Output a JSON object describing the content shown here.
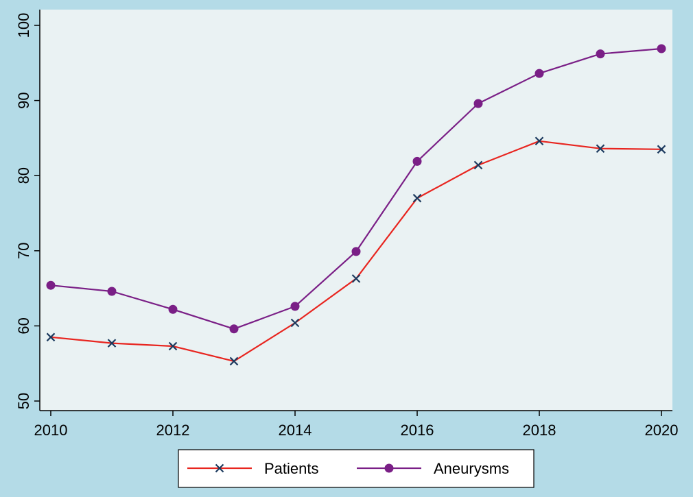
{
  "colors": {
    "background": "#b4dbe7",
    "plot_area": "#eaf2f3",
    "patients": "#e8251f",
    "patients_marker": "#1c3a5e",
    "aneurysms": "#7a1f86"
  },
  "chart_data": {
    "type": "line",
    "title": "",
    "xlabel": "",
    "ylabel": "",
    "x": [
      2010,
      2011,
      2012,
      2013,
      2014,
      2015,
      2016,
      2017,
      2018,
      2019,
      2020
    ],
    "xlim": [
      2010,
      2020
    ],
    "ylim": [
      50,
      100
    ],
    "x_ticks": [
      "2010",
      "2012",
      "2014",
      "2016",
      "2018",
      "2020"
    ],
    "y_ticks": [
      "50",
      "60",
      "70",
      "80",
      "90",
      "100"
    ],
    "grid": false,
    "legend_position": "bottom",
    "series": [
      {
        "name": "Patients",
        "marker": "x-cross",
        "values": [
          58.5,
          57.7,
          57.3,
          55.3,
          60.4,
          66.3,
          77.0,
          81.4,
          84.6,
          83.6,
          83.5
        ]
      },
      {
        "name": "Aneurysms",
        "marker": "filled-circle",
        "values": [
          65.4,
          64.6,
          62.2,
          59.6,
          62.6,
          69.9,
          81.9,
          89.6,
          93.6,
          96.2,
          96.9
        ]
      }
    ]
  }
}
